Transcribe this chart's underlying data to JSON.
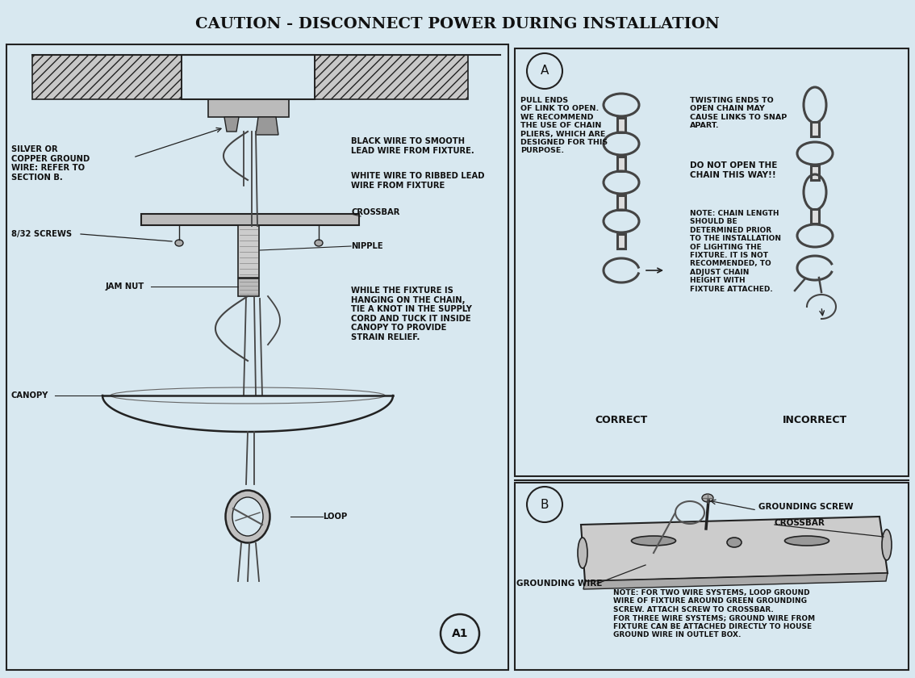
{
  "title": "CAUTION - DISCONNECT POWER DURING INSTALLATION",
  "bg_color": "#d8e8f0",
  "line_color": "#222222",
  "text_color": "#111111",
  "pull_text": "PULL ENDS\nOF LINK TO OPEN.\nWE RECOMMEND\nTHE USE OF CHAIN\nPLIERS, WHICH ARE\nDESIGNED FOR THIS\nPURPOSE.",
  "donot_text": "DO NOT OPEN THE\nCHAIN THIS WAY!!",
  "twist_text1": "TWISTING ENDS TO\nOPEN CHAIN MAY\nCAUSE LINKS TO SNAP\nAPART.",
  "twist_text2": "NOTE: CHAIN LENGTH\nSHOULD BE\nDETERMINED PRIOR\nTO THE INSTALLATION\nOF LIGHTING THE\nFIXTURE. IT IS NOT\nRECOMMENDED, TO\nADJUST CHAIN\nHEIGHT WITH\nFIXTURE ATTACHED.",
  "correct_label": "CORRECT",
  "incorrect_label": "INCORRECT",
  "note_b_text": "NOTE: FOR TWO WIRE SYSTEMS, LOOP GROUND\nWIRE OF FIXTURE AROUND GREEN GROUNDING\nSCREW. ATTACH SCREW TO CROSSBAR.\nFOR THREE WIRE SYSTEMS; GROUND WIRE FROM\nFIXTURE CAN BE ATTACHED DIRECTLY TO HOUSE\nGROUND WIRE IN OUTLET BOX."
}
